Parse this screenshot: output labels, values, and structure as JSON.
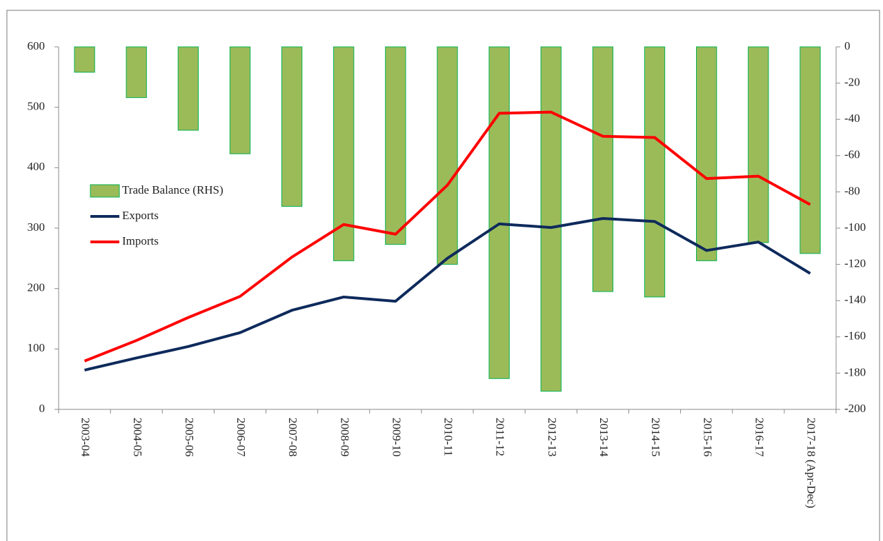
{
  "chart_data": {
    "type": "bar_line",
    "categories": [
      "2003-04",
      "2004-05",
      "2005-06",
      "2006-07",
      "2007-08",
      "2008-09",
      "2009-10",
      "2010-11",
      "2011-12",
      "2012-13",
      "2013-14",
      "2014-15",
      "2015-16",
      "2016-17",
      "2017-18 (Apr-Dec)"
    ],
    "series": [
      {
        "name": "Trade Balance (RHS)",
        "type": "bar",
        "axis": "y2",
        "color": "#9bbb59",
        "edge": "#00b050",
        "values": [
          -14,
          -28,
          -46,
          -59,
          -88,
          -118,
          -109,
          -120,
          -183,
          -190,
          -135,
          -138,
          -118,
          -108,
          -114
        ]
      },
      {
        "name": "Exports",
        "type": "line",
        "axis": "y",
        "color": "#0e2a5c",
        "values": [
          65,
          85,
          104,
          127,
          164,
          186,
          179,
          250,
          307,
          301,
          316,
          311,
          263,
          277,
          225
        ]
      },
      {
        "name": "Imports",
        "type": "line",
        "axis": "y",
        "color": "#ff0000",
        "values": [
          80,
          114,
          152,
          187,
          252,
          306,
          290,
          371,
          490,
          492,
          452,
          450,
          382,
          386,
          339
        ]
      }
    ],
    "ylim": [
      0,
      600
    ],
    "yticks": [
      0,
      100,
      200,
      300,
      400,
      500,
      600
    ],
    "y2lim": [
      -200,
      0
    ],
    "y2ticks": [
      -200,
      -180,
      -160,
      -140,
      -120,
      -100,
      -80,
      -60,
      -40,
      -20,
      0
    ],
    "grid": false
  }
}
